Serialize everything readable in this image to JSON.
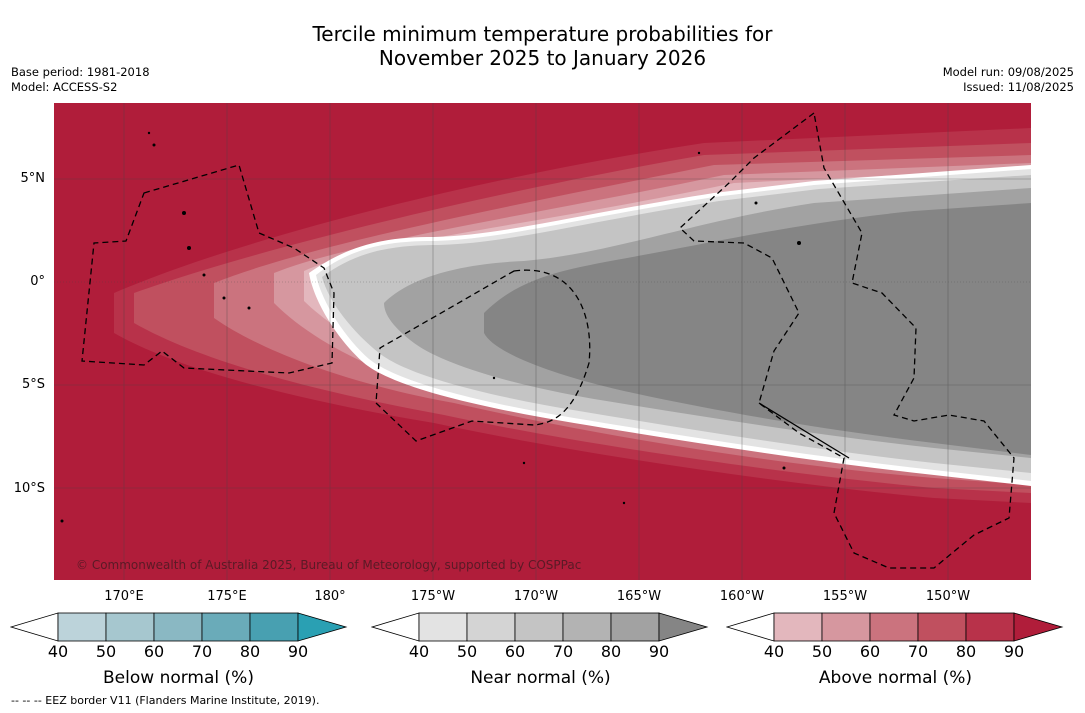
{
  "title_line1": "Tercile minimum temperature probabilities for",
  "title_line2": "November 2025 to January 2026",
  "meta_left": {
    "base_period": "Base period: 1981-2018",
    "model": "Model: ACCESS-S2"
  },
  "meta_right": {
    "model_run": "Model run: 09/08/2025",
    "issued": "Issued: 11/08/2025"
  },
  "lat_labels": [
    "5°N",
    "0°",
    "5°S",
    "10°S"
  ],
  "lon_labels": [
    "170°E",
    "175°E",
    "180°",
    "175°W",
    "170°W",
    "165°W",
    "160°W",
    "155°W",
    "150°W"
  ],
  "credit": "© Commonwealth of Australia 2025, Bureau of Meteorology, supported by COSPPac",
  "colorbars": [
    {
      "title": "Below normal (%)",
      "ticks": [
        "40",
        "50",
        "60",
        "70",
        "80",
        "90"
      ],
      "colors": [
        "#bcd3da",
        "#a6c7cf",
        "#8ab8c3",
        "#6aabb9",
        "#48a0b1",
        "#2aa0b3"
      ]
    },
    {
      "title": "Near normal (%)",
      "ticks": [
        "40",
        "50",
        "60",
        "70",
        "80",
        "90"
      ],
      "colors": [
        "#e3e3e3",
        "#d4d4d4",
        "#c4c4c4",
        "#b3b3b3",
        "#a2a2a2",
        "#858585"
      ]
    },
    {
      "title": "Above normal (%)",
      "ticks": [
        "40",
        "50",
        "60",
        "70",
        "80",
        "90"
      ],
      "colors": [
        "#e3b7bd",
        "#d6979f",
        "#cb737e",
        "#c0505f",
        "#b8324a",
        "#b01d3a"
      ]
    }
  ],
  "eez_note": "--  --  -- EEZ border V11 (Flanders Marine Institute, 2019)."
}
